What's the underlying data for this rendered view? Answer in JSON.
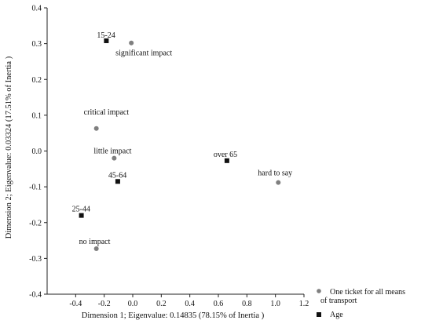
{
  "chart_data": {
    "type": "scatter",
    "xlabel": "Dimension 1; Eigenvalue:  0.14835 (78.15% of Inertia )",
    "ylabel": "Dimension 2; Eigenvalue:  0.03324 (17.51% of Inertia )",
    "xlim": [
      -0.6,
      1.2
    ],
    "ylim": [
      -0.4,
      0.4
    ],
    "xticks": [
      "-0.4",
      "-0.2",
      "0.0",
      "0.2",
      "0.4",
      "0.6",
      "0.8",
      "1.0",
      "1.2"
    ],
    "yticks": [
      "0.4",
      "0.3",
      "0.2",
      "0.1",
      "0.0",
      "-0.1",
      "-0.2",
      "-0.3",
      "-0.4"
    ],
    "grid": false,
    "legend_position": "bottom-right",
    "series": [
      {
        "name": "One ticket for all means of transport",
        "marker": "circle",
        "color": "#7f7f7f",
        "points": [
          {
            "label": "significant impact",
            "x": -0.01,
            "y": 0.302
          },
          {
            "label": "critical impact",
            "x": -0.255,
            "y": 0.063
          },
          {
            "label": "little impact",
            "x": -0.13,
            "y": -0.02
          },
          {
            "label": "hard to say",
            "x": 1.02,
            "y": -0.088
          },
          {
            "label": "no impact",
            "x": -0.255,
            "y": -0.273
          }
        ]
      },
      {
        "name": "Age",
        "marker": "square",
        "color": "#111111",
        "points": [
          {
            "label": "15-24",
            "x": -0.185,
            "y": 0.308
          },
          {
            "label": "over 65",
            "x": 0.66,
            "y": -0.027
          },
          {
            "label": "45-64",
            "x": -0.105,
            "y": -0.085
          },
          {
            "label": "25-44",
            "x": -0.36,
            "y": -0.18
          }
        ]
      }
    ]
  }
}
